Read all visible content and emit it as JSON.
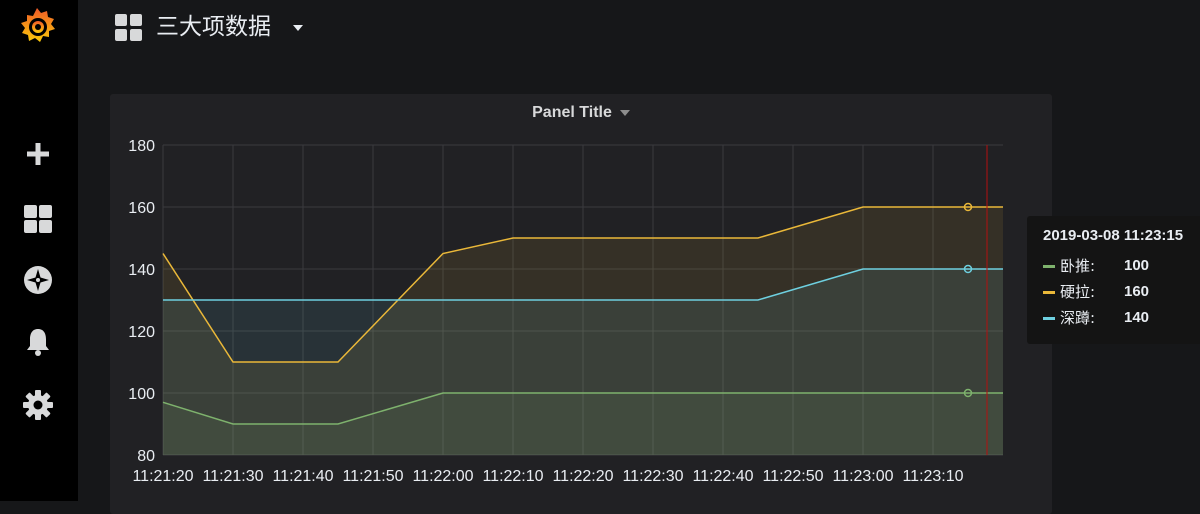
{
  "app": {
    "logo_icon": "grafana-logo-icon"
  },
  "sidebar": {
    "items": [
      {
        "icon": "plus-icon",
        "label": "Create"
      },
      {
        "icon": "dashboards-icon",
        "label": "Dashboards"
      },
      {
        "icon": "compass-icon",
        "label": "Explore"
      },
      {
        "icon": "bell-icon",
        "label": "Alerting"
      },
      {
        "icon": "gear-icon",
        "label": "Configuration"
      }
    ]
  },
  "header": {
    "dashboard_icon": "dashboard-grid-icon",
    "title": "三大项数据"
  },
  "panel": {
    "title": "Panel Title"
  },
  "tooltip": {
    "time": "2019-03-08 11:23:15",
    "rows": [
      {
        "name": "卧推:",
        "value": "100",
        "color": "#7eb26d"
      },
      {
        "name": "硬拉:",
        "value": "160",
        "color": "#eab839"
      },
      {
        "name": "深蹲:",
        "value": "140",
        "color": "#6ed0e0"
      }
    ]
  },
  "chart_data": {
    "type": "area",
    "title": "Panel Title",
    "ylim": [
      80,
      180
    ],
    "y_ticks": [
      "180",
      "160",
      "140",
      "120",
      "100",
      "80"
    ],
    "x_tick_labels": [
      "11:21:20",
      "11:21:30",
      "11:21:40",
      "11:21:50",
      "11:22:00",
      "11:22:10",
      "11:22:20",
      "11:22:30",
      "11:22:40",
      "11:22:50",
      "11:23:00",
      "11:23:10"
    ],
    "x": [
      "11:21:20",
      "11:21:30",
      "11:21:45",
      "11:22:00",
      "11:22:10",
      "11:22:45",
      "11:23:00",
      "11:23:15",
      "11:23:20"
    ],
    "series": [
      {
        "name": "卧推",
        "color": "#7eb26d",
        "values": [
          97,
          90,
          90,
          100,
          100,
          100,
          100,
          100,
          100
        ]
      },
      {
        "name": "硬拉",
        "color": "#eab839",
        "values": [
          145,
          110,
          110,
          145,
          150,
          150,
          160,
          160,
          160
        ]
      },
      {
        "name": "深蹲",
        "color": "#6ed0e0",
        "values": [
          130,
          130,
          130,
          130,
          130,
          130,
          140,
          140,
          140
        ]
      }
    ],
    "hover_x": "11:23:15",
    "grid": true,
    "legend": "none"
  }
}
